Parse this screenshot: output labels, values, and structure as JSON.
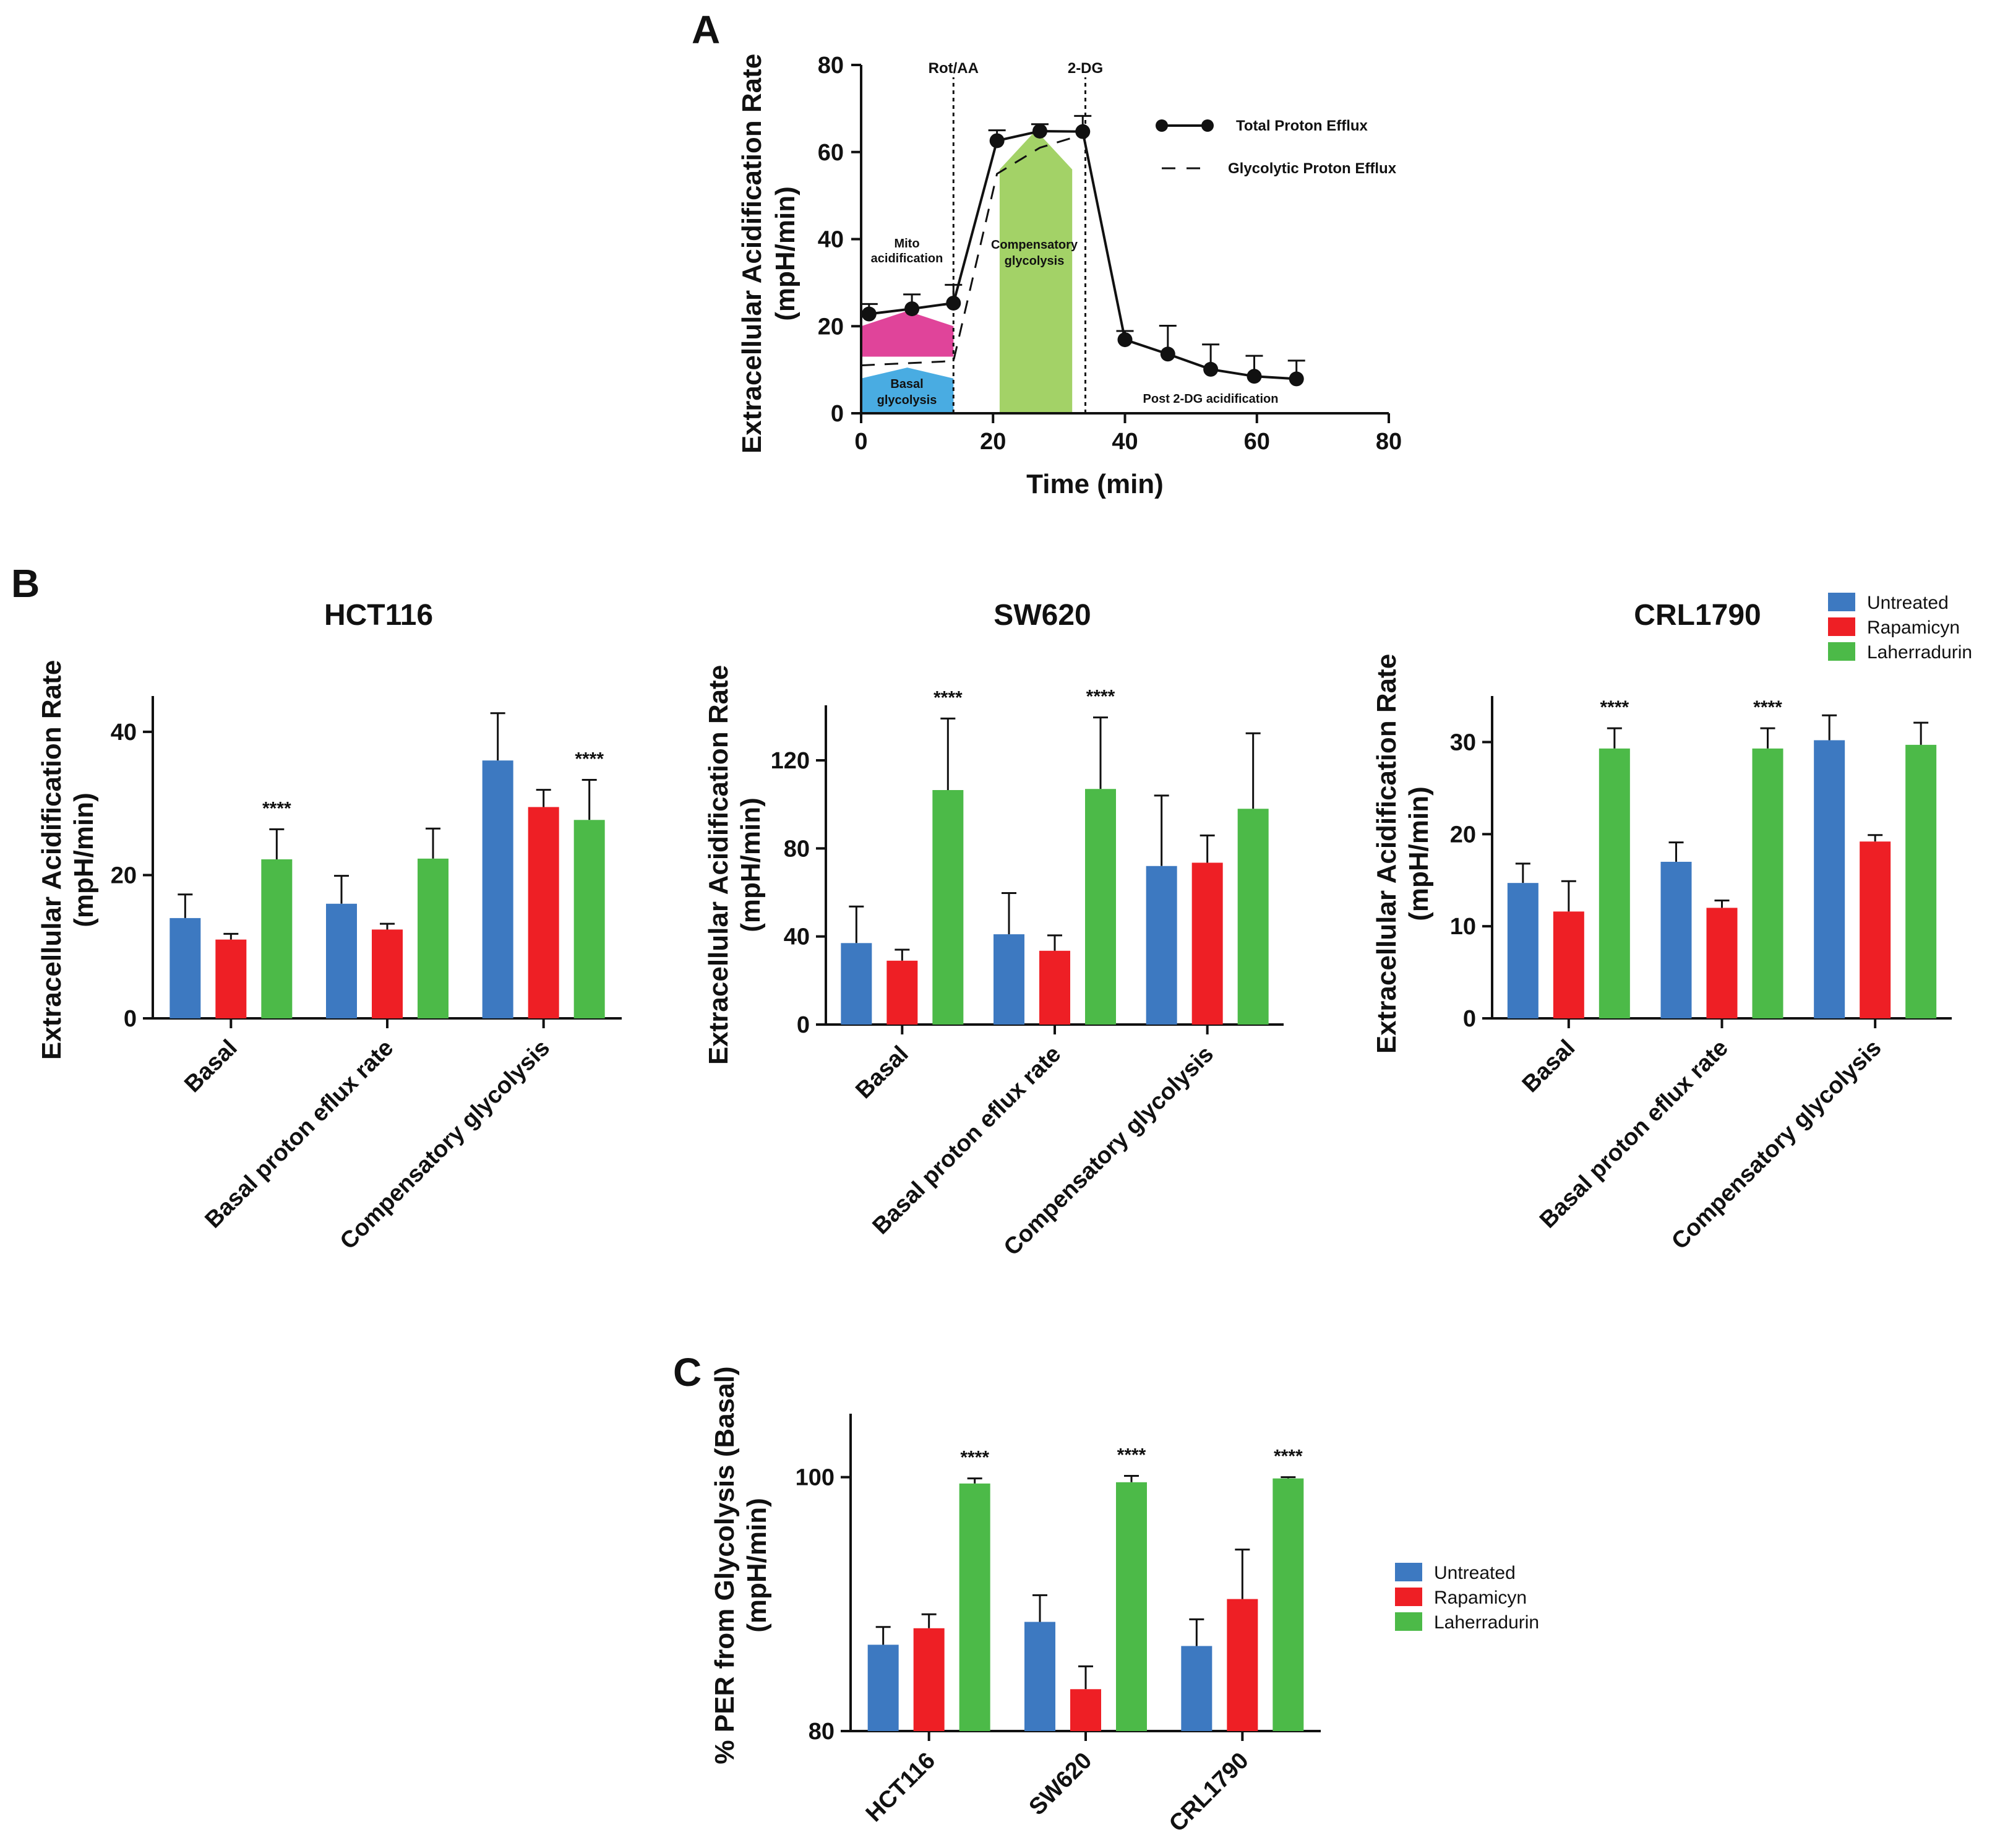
{
  "panels": {
    "a": "A",
    "b": "B",
    "c": "C"
  },
  "colors": {
    "untreated": "#3d79c1",
    "rapamicyn": "#ee1f25",
    "laherradurin": "#4cba48",
    "mito": "#e0449a",
    "basal": "#49ace2",
    "compensatory": "#a3d267"
  },
  "legend": {
    "untreated": "Untreated",
    "rapamicyn": "Rapamicyn",
    "laherradurin": "Laherradurin"
  },
  "chart_data": [
    {
      "id": "A",
      "type": "line",
      "xlabel": "Time (min)",
      "ylabel": [
        "Extracellular Acidification Rate",
        "(mpH/min)"
      ],
      "xlim": [
        0,
        80
      ],
      "ylim": [
        0,
        80
      ],
      "xticks": [
        0,
        20,
        40,
        60,
        80
      ],
      "yticks": [
        0,
        20,
        40,
        60,
        80
      ],
      "injections": [
        {
          "x": 14,
          "label": "Rot/AA"
        },
        {
          "x": 34,
          "label": "2-DG"
        }
      ],
      "legend": {
        "total": "Total Proton Efflux",
        "glyco": "Glycolytic Proton Efflux"
      },
      "regions": {
        "mito": [
          "Mito",
          "acidification"
        ],
        "basal": [
          "Basal",
          "glycolysis"
        ],
        "compensatory": [
          "Compensatory",
          "glycolysis"
        ],
        "post": "Post 2-DG acidification"
      },
      "series": [
        {
          "name": "Total Proton Efflux",
          "x": [
            1.2,
            7.7,
            14,
            20.6,
            27.1,
            33.6,
            40,
            46.5,
            53,
            59.6,
            66
          ],
          "y": [
            22.8,
            24,
            25.3,
            62.6,
            64.8,
            64.7,
            16.9,
            13.6,
            10.1,
            8.5,
            7.9
          ],
          "err": [
            2.3,
            3.3,
            4.2,
            2.4,
            1.6,
            3.6,
            2.0,
            6.5,
            5.7,
            4.7,
            4.2
          ]
        },
        {
          "name": "Glycolytic Proton Efflux",
          "x": [
            0,
            14,
            20.6,
            27.1,
            33.6
          ],
          "y": [
            11,
            12,
            55,
            61,
            64
          ]
        }
      ]
    },
    {
      "id": "B1",
      "type": "bar",
      "title": "HCT116",
      "ylabel": [
        "Extracellular Acidification Rate",
        "(mpH/min)"
      ],
      "ylim": [
        0,
        45
      ],
      "yticks": [
        0,
        20,
        40
      ],
      "categories": [
        "Basal",
        "Basal proton eflux rate",
        "Compensatory glycolysis"
      ],
      "series": [
        {
          "name": "Untreated",
          "values": [
            14,
            16,
            36
          ],
          "err": [
            3.3,
            3.9,
            6.6
          ]
        },
        {
          "name": "Rapamicyn",
          "values": [
            11,
            12.4,
            29.5
          ],
          "err": [
            0.8,
            0.8,
            2.4
          ]
        },
        {
          "name": "Laherradurin",
          "values": [
            22.2,
            22.3,
            27.7
          ],
          "err": [
            4.2,
            4.2,
            5.6
          ]
        }
      ],
      "sig": [
        {
          "cat": 0,
          "label": "****"
        },
        {
          "cat": 2,
          "label": "****"
        }
      ]
    },
    {
      "id": "B2",
      "type": "bar",
      "title": "SW620",
      "ylabel": [
        "Extracellular Acidification Rate",
        "(mpH/min)"
      ],
      "ylim": [
        0,
        145
      ],
      "yticks": [
        0,
        40,
        80,
        120
      ],
      "categories": [
        "Basal",
        "Basal proton eflux rate",
        "Compensatory glycolysis"
      ],
      "series": [
        {
          "name": "Untreated",
          "values": [
            37,
            41,
            72
          ],
          "err": [
            16.6,
            18.7,
            32
          ]
        },
        {
          "name": "Rapamicyn",
          "values": [
            29,
            33.5,
            73.5
          ],
          "err": [
            5,
            7,
            12.4
          ]
        },
        {
          "name": "Laherradurin",
          "values": [
            106.5,
            107,
            98
          ],
          "err": [
            32.5,
            32.5,
            34.3
          ]
        }
      ],
      "sig": [
        {
          "cat": 0,
          "label": "****"
        },
        {
          "cat": 1,
          "label": "****"
        }
      ]
    },
    {
      "id": "B3",
      "type": "bar",
      "title": "CRL1790",
      "ylabel": [
        "Extracellular Acidification Rate",
        "(mpH/min)"
      ],
      "ylim": [
        0,
        35
      ],
      "yticks": [
        0,
        10,
        20,
        30
      ],
      "categories": [
        "Basal",
        "Basal proton eflux rate",
        "Compensatory glycolysis"
      ],
      "series": [
        {
          "name": "Untreated",
          "values": [
            14.7,
            17,
            30.2
          ],
          "err": [
            2.1,
            2.1,
            2.7
          ]
        },
        {
          "name": "Rapamicyn",
          "values": [
            11.6,
            12,
            19.2
          ],
          "err": [
            3.3,
            0.8,
            0.7
          ]
        },
        {
          "name": "Laherradurin",
          "values": [
            29.3,
            29.3,
            29.7
          ],
          "err": [
            2.2,
            2.2,
            2.4
          ]
        }
      ],
      "sig": [
        {
          "cat": 0,
          "label": "****"
        },
        {
          "cat": 1,
          "label": "****"
        }
      ]
    },
    {
      "id": "C",
      "type": "bar",
      "ylabel": [
        "% PER from Glycolysis (Basal)",
        "(mpH/min)"
      ],
      "ylim": [
        80,
        105
      ],
      "yticks": [
        80,
        100
      ],
      "categories": [
        "HCT116",
        "SW620",
        "CRL1790"
      ],
      "series": [
        {
          "name": "Untreated",
          "values": [
            86.8,
            88.6,
            86.7
          ],
          "err": [
            1.4,
            2.1,
            2.1
          ]
        },
        {
          "name": "Rapamicyn",
          "values": [
            88.1,
            83.3,
            90.4
          ],
          "err": [
            1.1,
            1.8,
            3.9
          ]
        },
        {
          "name": "Laherradurin",
          "values": [
            99.5,
            99.6,
            99.9
          ],
          "err": [
            0.4,
            0.5,
            0.1
          ]
        }
      ],
      "sig": [
        {
          "cat": 0,
          "label": "****"
        },
        {
          "cat": 1,
          "label": "****"
        },
        {
          "cat": 2,
          "label": "****"
        }
      ]
    }
  ]
}
